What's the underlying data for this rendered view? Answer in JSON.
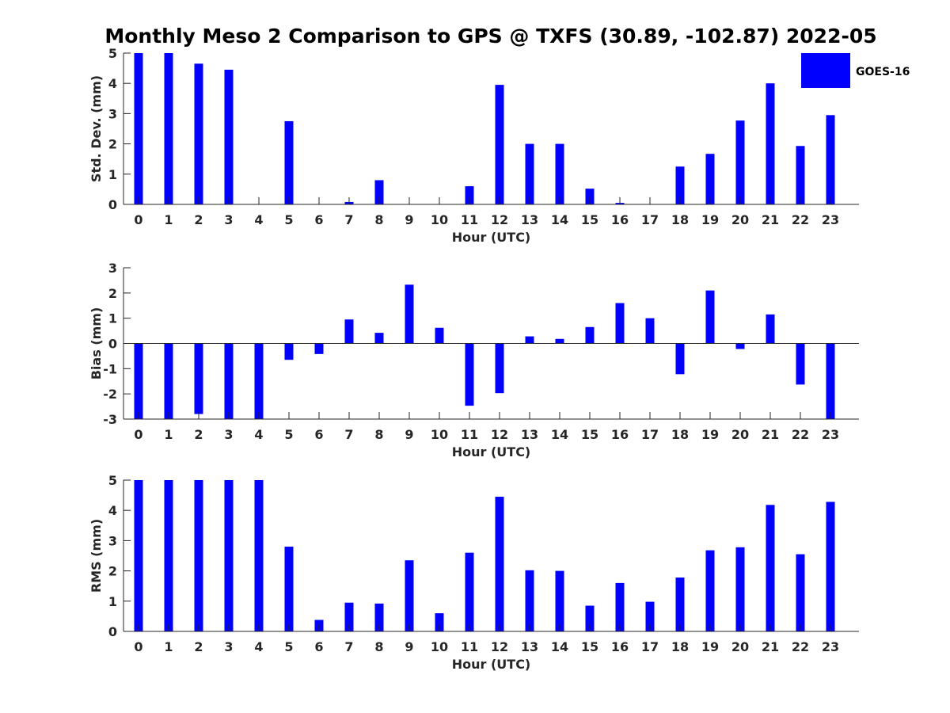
{
  "figure": {
    "title": "Monthly Meso 2 Comparison to GPS @ TXFS (30.89, -102.87) 2022-05",
    "legend": {
      "label": "GOES-16",
      "color": "#0000ff"
    }
  },
  "chart_data": [
    {
      "type": "bar",
      "xlabel": "Hour (UTC)",
      "ylabel": "Std. Dev. (mm)",
      "ylim": [
        0,
        5
      ],
      "yticks": [
        0,
        1,
        2,
        3,
        4,
        5
      ],
      "categories": [
        0,
        1,
        2,
        3,
        4,
        5,
        6,
        7,
        8,
        9,
        10,
        11,
        12,
        13,
        14,
        15,
        16,
        17,
        18,
        19,
        20,
        21,
        22,
        23
      ],
      "series": [
        {
          "name": "GOES-16",
          "values": [
            5.0,
            5.0,
            4.65,
            4.45,
            0,
            2.75,
            0,
            0.08,
            0.8,
            0,
            0,
            0.6,
            3.95,
            2.0,
            2.0,
            0.52,
            0.05,
            0,
            1.25,
            1.67,
            2.77,
            4.0,
            1.93,
            2.95
          ]
        }
      ],
      "color": "#0000ff",
      "legend": "top-right"
    },
    {
      "type": "bar",
      "xlabel": "Hour (UTC)",
      "ylabel": "Bias (mm)",
      "ylim": [
        -3,
        3
      ],
      "yticks": [
        -3,
        -2,
        -1,
        0,
        1,
        2,
        3
      ],
      "categories": [
        0,
        1,
        2,
        3,
        4,
        5,
        6,
        7,
        8,
        9,
        10,
        11,
        12,
        13,
        14,
        15,
        16,
        17,
        18,
        19,
        20,
        21,
        22,
        23
      ],
      "series": [
        {
          "name": "GOES-16",
          "values": [
            -3.0,
            -3.0,
            -2.8,
            -3.0,
            -3.0,
            -0.65,
            -0.42,
            0.95,
            0.42,
            2.33,
            0.62,
            -2.47,
            -1.97,
            0.28,
            0.18,
            0.65,
            1.6,
            1.0,
            -1.22,
            2.1,
            -0.22,
            1.15,
            -1.63,
            -3.0
          ]
        }
      ],
      "color": "#0000ff"
    },
    {
      "type": "bar",
      "xlabel": "Hour (UTC)",
      "ylabel": "RMS (mm)",
      "ylim": [
        0,
        5
      ],
      "yticks": [
        0,
        1,
        2,
        3,
        4,
        5
      ],
      "categories": [
        0,
        1,
        2,
        3,
        4,
        5,
        6,
        7,
        8,
        9,
        10,
        11,
        12,
        13,
        14,
        15,
        16,
        17,
        18,
        19,
        20,
        21,
        22,
        23
      ],
      "series": [
        {
          "name": "GOES-16",
          "values": [
            5.0,
            5.0,
            5.0,
            5.0,
            5.0,
            2.8,
            0.38,
            0.95,
            0.92,
            2.35,
            0.6,
            2.6,
            4.45,
            2.02,
            2.0,
            0.85,
            1.6,
            0.98,
            1.78,
            2.68,
            2.78,
            4.18,
            2.55,
            4.28
          ]
        }
      ],
      "color": "#0000ff"
    }
  ]
}
